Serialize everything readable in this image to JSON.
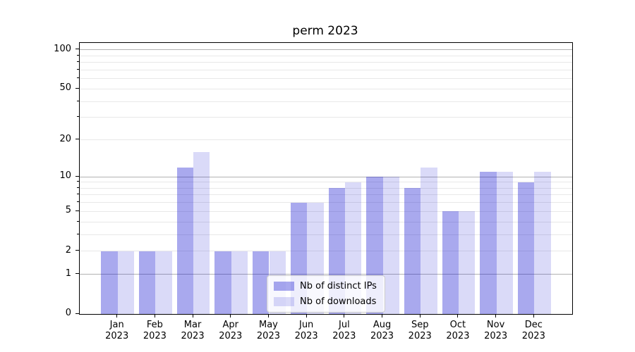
{
  "title": "perm 2023",
  "chart_data": {
    "type": "bar",
    "title": "perm 2023",
    "categories": [
      "Jan",
      "Feb",
      "Mar",
      "Apr",
      "May",
      "Jun",
      "Jul",
      "Aug",
      "Sep",
      "Oct",
      "Nov",
      "Dec"
    ],
    "year": "2023",
    "series": [
      {
        "name": "Nb of distinct IPs",
        "values": [
          2,
          2,
          12,
          2,
          2,
          6,
          8,
          10,
          8,
          5,
          11,
          9
        ],
        "fill": "rgba(10,10,205,0.35)",
        "approx_hex": "#a8a8ee"
      },
      {
        "name": "Nb of downloads",
        "values": [
          2,
          2,
          16,
          2,
          2,
          6,
          9,
          10,
          12,
          5,
          11,
          11
        ],
        "fill": "rgba(10,10,205,0.15)",
        "approx_hex": "#d9d9f7"
      }
    ],
    "yscale": "log1p",
    "ylim": [
      0,
      113
    ],
    "yticks_labeled": [
      0,
      1,
      2,
      5,
      10,
      20,
      50,
      100
    ],
    "grid_major": [
      1,
      10,
      100
    ],
    "grid_minor": [
      2,
      3,
      4,
      5,
      6,
      7,
      8,
      9,
      20,
      30,
      40,
      50,
      60,
      70,
      80,
      90
    ],
    "xlabel": "",
    "ylabel": "",
    "legend_position": "lower center",
    "colors": {
      "grid_major": "#b2b2b2",
      "grid_minor": "#e8e8e8",
      "spine": "#000000",
      "text": "#000000",
      "background": "#ffffff"
    }
  }
}
